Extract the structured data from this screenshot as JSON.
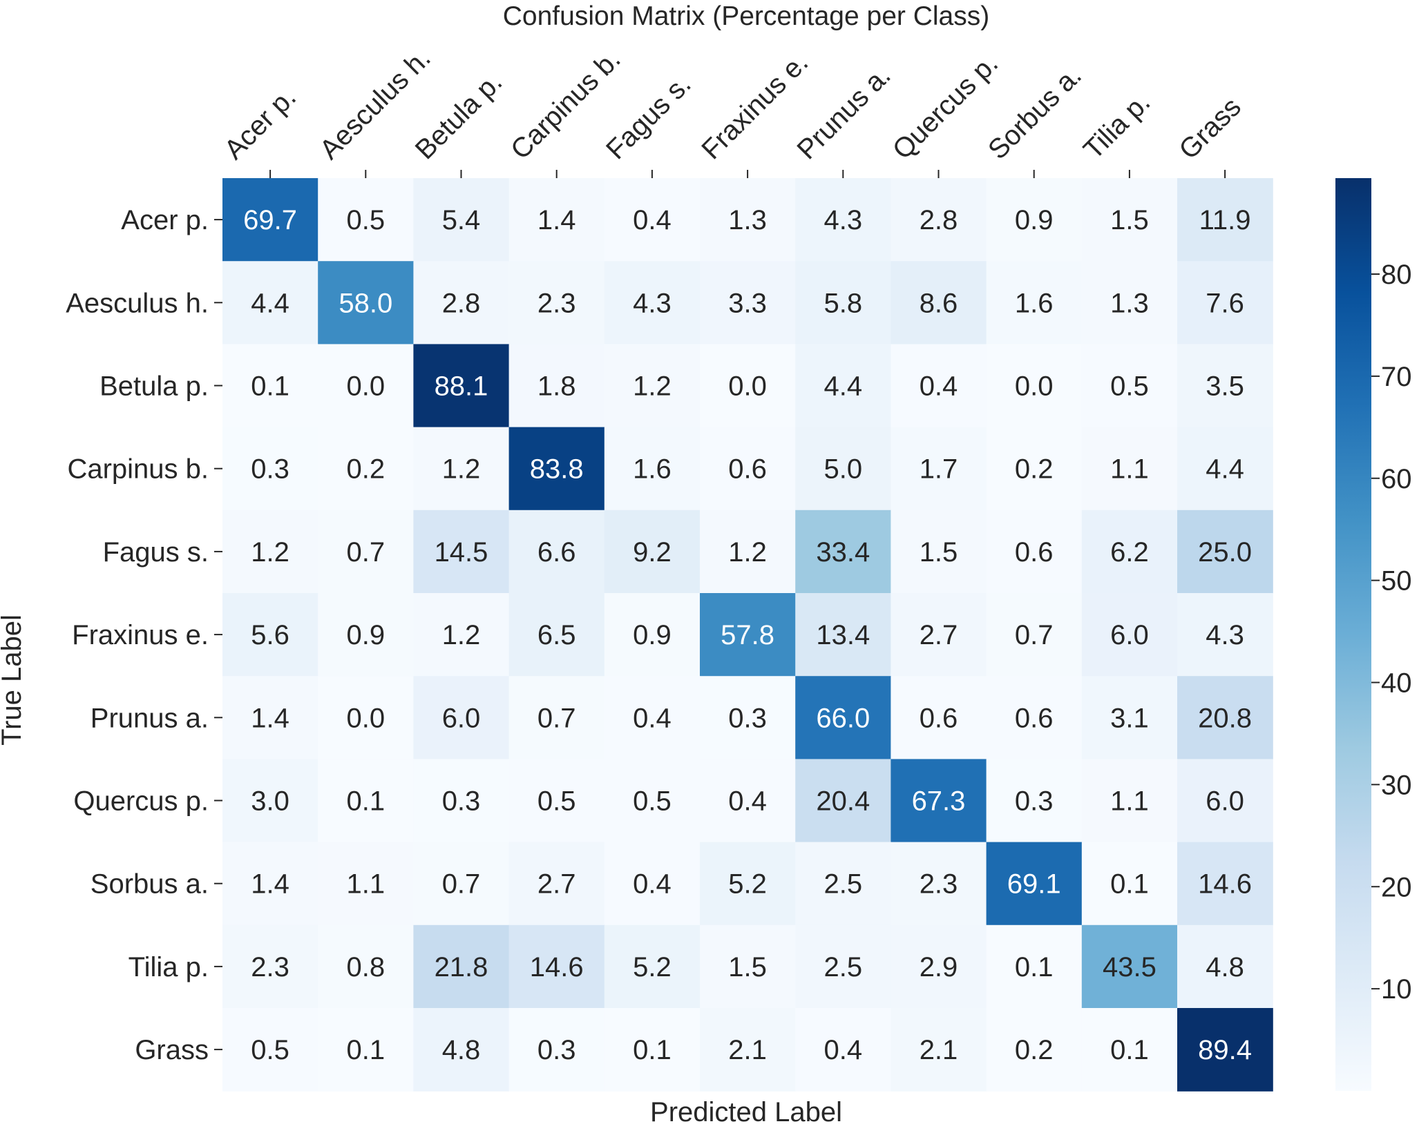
{
  "chart_data": {
    "type": "heatmap",
    "title": "Confusion Matrix (Percentage per Class)",
    "xlabel": "Predicted Label",
    "ylabel": "True Label",
    "x_categories": [
      "Acer p.",
      "Aesculus h.",
      "Betula p.",
      "Carpinus b.",
      "Fagus s.",
      "Fraxinus e.",
      "Prunus a.",
      "Quercus p.",
      "Sorbus a.",
      "Tilia p.",
      "Grass"
    ],
    "y_categories": [
      "Acer p.",
      "Aesculus h.",
      "Betula p.",
      "Carpinus b.",
      "Fagus s.",
      "Fraxinus e.",
      "Prunus a.",
      "Quercus p.",
      "Sorbus a.",
      "Tilia p.",
      "Grass"
    ],
    "values": [
      [
        69.7,
        0.5,
        5.4,
        1.4,
        0.4,
        1.3,
        4.3,
        2.8,
        0.9,
        1.5,
        11.9
      ],
      [
        4.4,
        58.0,
        2.8,
        2.3,
        4.3,
        3.3,
        5.8,
        8.6,
        1.6,
        1.3,
        7.6
      ],
      [
        0.1,
        0.0,
        88.1,
        1.8,
        1.2,
        0.0,
        4.4,
        0.4,
        0.0,
        0.5,
        3.5
      ],
      [
        0.3,
        0.2,
        1.2,
        83.8,
        1.6,
        0.6,
        5.0,
        1.7,
        0.2,
        1.1,
        4.4
      ],
      [
        1.2,
        0.7,
        14.5,
        6.6,
        9.2,
        1.2,
        33.4,
        1.5,
        0.6,
        6.2,
        25.0
      ],
      [
        5.6,
        0.9,
        1.2,
        6.5,
        0.9,
        57.8,
        13.4,
        2.7,
        0.7,
        6.0,
        4.3
      ],
      [
        1.4,
        0.0,
        6.0,
        0.7,
        0.4,
        0.3,
        66.0,
        0.6,
        0.6,
        3.1,
        20.8
      ],
      [
        3.0,
        0.1,
        0.3,
        0.5,
        0.5,
        0.4,
        20.4,
        67.3,
        0.3,
        1.1,
        6.0
      ],
      [
        1.4,
        1.1,
        0.7,
        2.7,
        0.4,
        5.2,
        2.5,
        2.3,
        69.1,
        0.1,
        14.6
      ],
      [
        2.3,
        0.8,
        21.8,
        14.6,
        5.2,
        1.5,
        2.5,
        2.9,
        0.1,
        43.5,
        4.8
      ],
      [
        0.5,
        0.1,
        4.8,
        0.3,
        0.1,
        2.1,
        0.4,
        2.1,
        0.2,
        0.1,
        89.4
      ]
    ],
    "colorscale": "Blues",
    "colorbar": {
      "ticks": [
        10,
        20,
        30,
        40,
        50,
        60,
        70,
        80
      ],
      "tick_labels": [
        "10",
        "20",
        "30",
        "40",
        "50",
        "60",
        "70",
        "80"
      ],
      "range": [
        0.0,
        89.4
      ]
    },
    "annotation_threshold": 44.7,
    "colors": {
      "text_dark": "#262626",
      "text_light": "#ffffff",
      "scale": [
        "#f7fbff",
        "#deebf7",
        "#c6dbef",
        "#9ecae1",
        "#6baed6",
        "#4292c6",
        "#2171b5",
        "#08519c",
        "#08306b"
      ]
    }
  }
}
